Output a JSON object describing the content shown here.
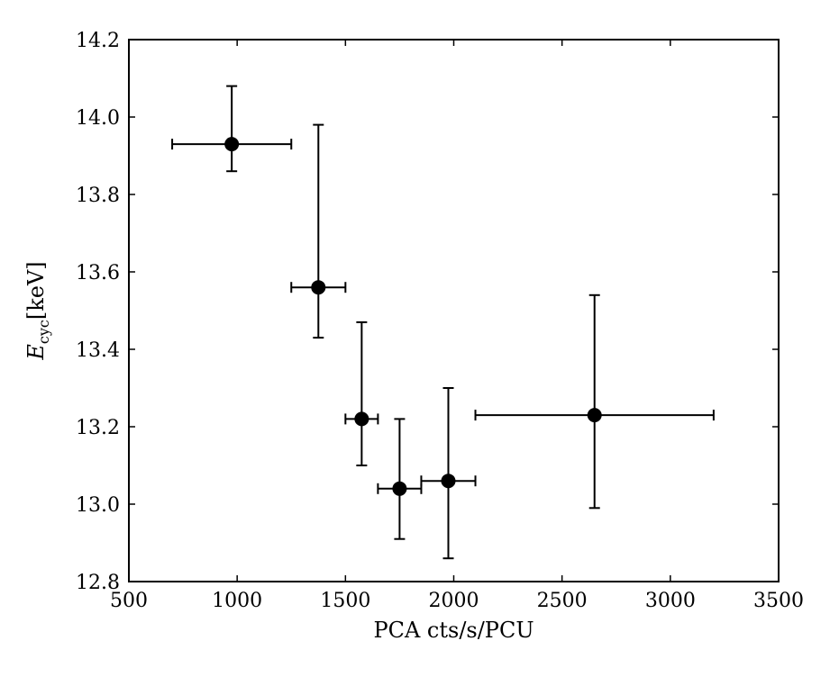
{
  "chart_data": {
    "type": "scatter",
    "title": "",
    "xlabel": "PCA cts/s/PCU",
    "ylabel": {
      "symbol": "E",
      "subscript": "cyc",
      "unit": "[keV]"
    },
    "xlim": [
      500,
      3500
    ],
    "ylim": [
      12.8,
      14.2
    ],
    "xticks": [
      500,
      1000,
      1500,
      2000,
      2500,
      3000,
      3500
    ],
    "xtick_labels": [
      "500",
      "1000",
      "1500",
      "2000",
      "2500",
      "3000",
      "3500"
    ],
    "yticks": [
      12.8,
      13.0,
      13.2,
      13.4,
      13.6,
      13.8,
      14.0,
      14.2
    ],
    "ytick_labels": [
      "12.8",
      "13.0",
      "13.2",
      "13.4",
      "13.6",
      "13.8",
      "14.0",
      "14.2"
    ],
    "grid": false,
    "legend": "none",
    "marker_color": "#000000",
    "points": [
      {
        "x": 975,
        "y": 13.93,
        "xmin": 700,
        "xmax": 1250,
        "ymin": 13.86,
        "ymax": 14.08
      },
      {
        "x": 1375,
        "y": 13.56,
        "xmin": 1250,
        "xmax": 1500,
        "ymin": 13.43,
        "ymax": 13.98
      },
      {
        "x": 1575,
        "y": 13.22,
        "xmin": 1500,
        "xmax": 1650,
        "ymin": 13.1,
        "ymax": 13.47
      },
      {
        "x": 1750,
        "y": 13.04,
        "xmin": 1650,
        "xmax": 1850,
        "ymin": 12.91,
        "ymax": 13.22
      },
      {
        "x": 1975,
        "y": 13.06,
        "xmin": 1850,
        "xmax": 2100,
        "ymin": 12.86,
        "ymax": 13.3
      },
      {
        "x": 2650,
        "y": 13.23,
        "xmin": 2100,
        "xmax": 3200,
        "ymin": 12.99,
        "ymax": 13.54
      }
    ]
  }
}
